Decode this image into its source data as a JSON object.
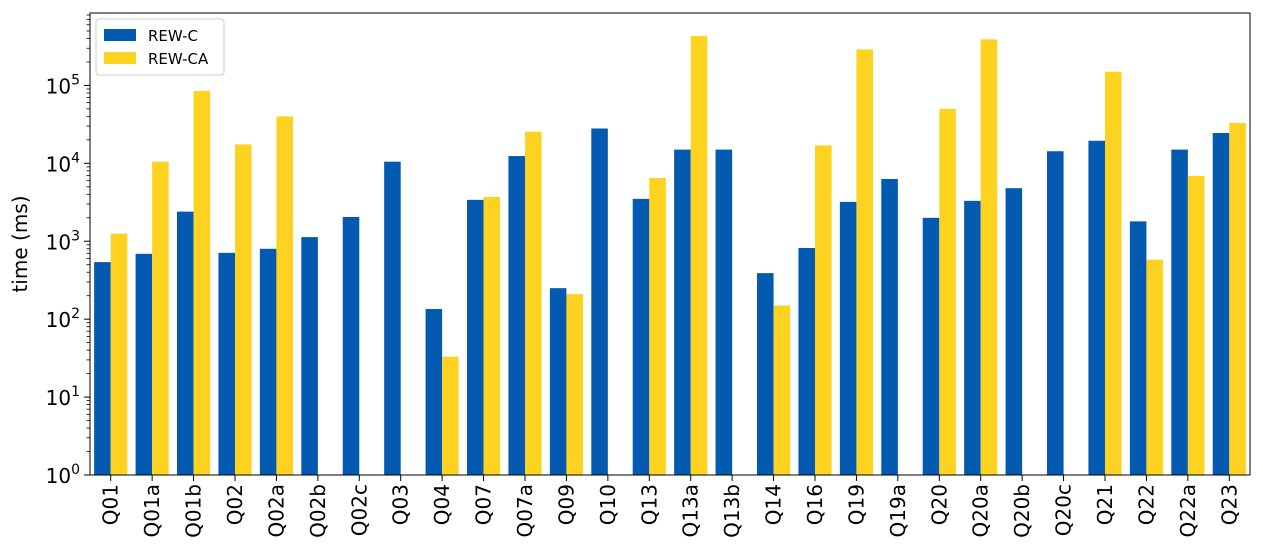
{
  "chart_data": {
    "type": "bar",
    "title": "",
    "xlabel": "",
    "ylabel": "time (ms)",
    "yscale": "log",
    "ylim": [
      1,
      850000
    ],
    "grid": false,
    "legend_position": "top-left",
    "y_ticks": [
      {
        "base": "10",
        "exp": "0"
      },
      {
        "base": "10",
        "exp": "1"
      },
      {
        "base": "10",
        "exp": "2"
      },
      {
        "base": "10",
        "exp": "3"
      },
      {
        "base": "10",
        "exp": "4"
      },
      {
        "base": "10",
        "exp": "5"
      }
    ],
    "categories": [
      "Q01",
      "Q01a",
      "Q01b",
      "Q02",
      "Q02a",
      "Q02b",
      "Q02c",
      "Q03",
      "Q04",
      "Q07",
      "Q07a",
      "Q09",
      "Q10",
      "Q13",
      "Q13a",
      "Q13b",
      "Q14",
      "Q16",
      "Q19",
      "Q19a",
      "Q20",
      "Q20a",
      "Q20b",
      "Q20c",
      "Q21",
      "Q22",
      "Q22a",
      "Q23"
    ],
    "series": [
      {
        "name": "REW-C",
        "color": "#045ab0",
        "values": [
          540,
          690,
          2400,
          710,
          800,
          1130,
          2050,
          10500,
          135,
          3400,
          12400,
          250,
          28000,
          3500,
          15000,
          15000,
          390,
          820,
          3200,
          6300,
          2000,
          3300,
          4800,
          14300,
          19500,
          1800,
          15000,
          24500
        ]
      },
      {
        "name": "REW-CA",
        "color": "#fed221",
        "values": [
          1250,
          10500,
          85000,
          17500,
          40000,
          null,
          null,
          null,
          33,
          3700,
          25500,
          210,
          null,
          6500,
          430000,
          null,
          150,
          17000,
          290000,
          null,
          50000,
          390000,
          null,
          null,
          150000,
          580,
          6900,
          33000
        ]
      }
    ]
  }
}
